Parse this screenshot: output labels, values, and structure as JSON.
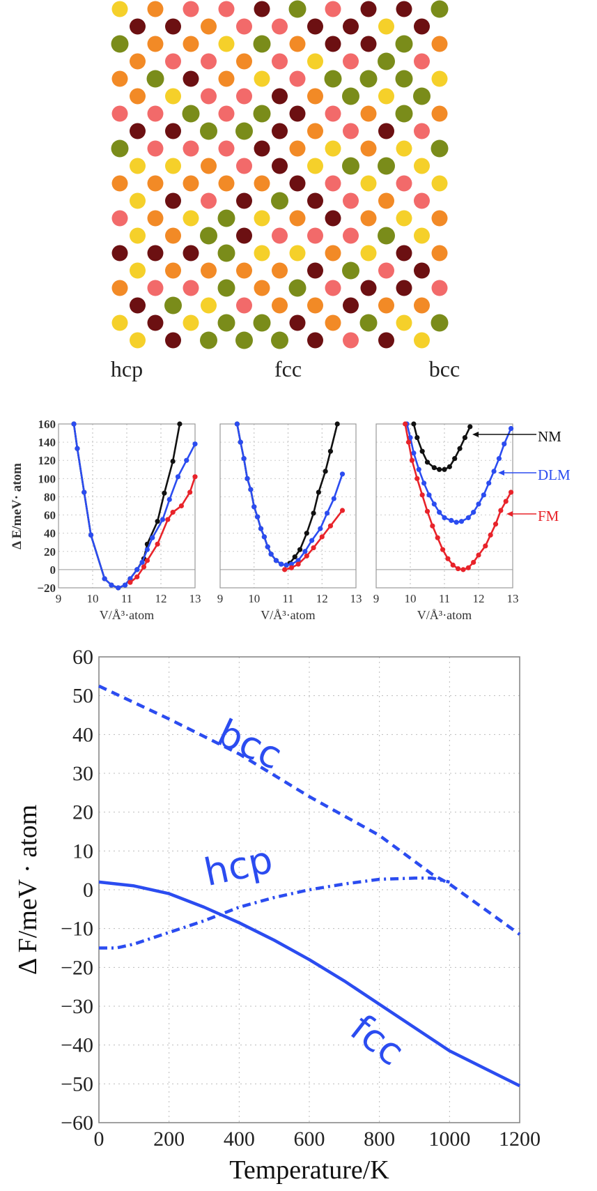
{
  "lattice": {
    "palette": [
      "#f5d02a",
      "#f26a6a",
      "#7a8c1a",
      "#6c1012",
      "#f28a26"
    ]
  },
  "chart_data": [
    {
      "type": "line",
      "title": "hcp",
      "xlabel": "V/Å³·atom",
      "ylabel": "Δ E/meV· atom",
      "xlim": [
        9,
        13
      ],
      "ylim": [
        -20,
        160
      ],
      "xticks": [
        "9",
        "10",
        "11",
        "12",
        "13"
      ],
      "yticks": [
        "−20",
        "0",
        "20",
        "40",
        "60",
        "80",
        "100",
        "120",
        "140",
        "160"
      ],
      "grid": true,
      "series": [
        {
          "name": "NM",
          "color": "#111111",
          "x": [
            9.45,
            9.55,
            9.75,
            9.95,
            10.35,
            10.55,
            10.75,
            10.95,
            11.1,
            11.3,
            11.5,
            11.6,
            11.9,
            12.1,
            12.35,
            12.55
          ],
          "y": [
            160,
            133,
            85,
            38,
            -10,
            -17,
            -20,
            -17,
            -10,
            0,
            12,
            28,
            53,
            84,
            119,
            160
          ]
        },
        {
          "name": "DLM",
          "color": "#2b4cf0",
          "x": [
            9.45,
            9.55,
            9.75,
            9.95,
            10.35,
            10.55,
            10.75,
            10.95,
            11.1,
            11.3,
            11.45,
            11.6,
            11.75,
            12.05,
            12.25,
            12.5,
            12.75,
            13.0
          ],
          "y": [
            160,
            133,
            85,
            38,
            -10,
            -17,
            -20,
            -17,
            -10,
            0,
            8,
            22,
            35,
            55,
            77,
            102,
            120,
            138
          ]
        },
        {
          "name": "FM",
          "color": "#e8232a",
          "x": [
            11.1,
            11.3,
            11.5,
            11.6,
            11.9,
            12.2,
            12.35,
            12.6,
            12.85,
            13.0
          ],
          "y": [
            -14,
            -8,
            3,
            10,
            28,
            55,
            63,
            70,
            85,
            102
          ]
        }
      ]
    },
    {
      "type": "line",
      "title": "fcc",
      "xlabel": "V/Å³·atom",
      "xlim": [
        9,
        13
      ],
      "ylim": [
        -20,
        160
      ],
      "xticks": [
        "9",
        "10",
        "11",
        "12",
        "13"
      ],
      "grid": true,
      "series": [
        {
          "name": "NM",
          "color": "#111111",
          "x": [
            9.5,
            9.6,
            9.7,
            9.8,
            9.9,
            10.0,
            10.1,
            10.2,
            10.3,
            10.4,
            10.5,
            10.65,
            10.8,
            10.95,
            11.05,
            11.2,
            11.35,
            11.55,
            11.75,
            11.9,
            12.1,
            12.25,
            12.45
          ],
          "y": [
            160,
            140,
            122,
            100,
            88,
            69,
            58,
            45,
            36,
            25,
            17,
            10,
            6,
            5,
            7,
            14,
            22,
            40,
            62,
            85,
            108,
            130,
            160
          ]
        },
        {
          "name": "DLM",
          "color": "#2b4cf0",
          "x": [
            9.5,
            9.6,
            9.7,
            9.8,
            9.9,
            10.0,
            10.1,
            10.2,
            10.3,
            10.4,
            10.5,
            10.65,
            10.8,
            10.95,
            11.1,
            11.3,
            11.5,
            11.7,
            11.95,
            12.15,
            12.35,
            12.6
          ],
          "y": [
            160,
            140,
            122,
            100,
            88,
            69,
            58,
            45,
            36,
            25,
            17,
            10,
            6,
            5,
            6,
            10,
            20,
            32,
            45,
            62,
            78,
            105
          ]
        },
        {
          "name": "FM",
          "color": "#e8232a",
          "x": [
            10.9,
            11.1,
            11.3,
            11.55,
            11.75,
            12.0,
            12.25,
            12.6
          ],
          "y": [
            0,
            2,
            6,
            15,
            24,
            36,
            48,
            65
          ]
        }
      ]
    },
    {
      "type": "line",
      "title": "bcc",
      "xlabel": "V/Å³·atom",
      "xlim": [
        9,
        13
      ],
      "ylim": [
        -20,
        160
      ],
      "xticks": [
        "9",
        "10",
        "11",
        "12",
        "13"
      ],
      "grid": true,
      "legend": "right",
      "series": [
        {
          "name": "NM",
          "color": "#111111",
          "x": [
            10.1,
            10.2,
            10.35,
            10.5,
            10.7,
            10.85,
            11.0,
            11.15,
            11.3,
            11.45,
            11.6,
            11.75
          ],
          "y": [
            160,
            145,
            130,
            118,
            112,
            110,
            110,
            113,
            122,
            133,
            145,
            157
          ]
        },
        {
          "name": "DLM",
          "color": "#2b4cf0",
          "x": [
            9.9,
            10.0,
            10.1,
            10.25,
            10.4,
            10.55,
            10.7,
            10.85,
            11.0,
            11.2,
            11.35,
            11.5,
            11.7,
            11.85,
            12.0,
            12.15,
            12.3,
            12.45,
            12.6,
            12.75,
            12.95
          ],
          "y": [
            160,
            145,
            128,
            110,
            95,
            82,
            72,
            63,
            57,
            54,
            52,
            53,
            57,
            63,
            72,
            82,
            95,
            108,
            122,
            138,
            155
          ]
        },
        {
          "name": "FM",
          "color": "#e8232a",
          "x": [
            9.85,
            9.95,
            10.05,
            10.2,
            10.35,
            10.5,
            10.65,
            10.8,
            10.95,
            11.1,
            11.25,
            11.4,
            11.55,
            11.7,
            11.85,
            12.0,
            12.2,
            12.35,
            12.5,
            12.65,
            12.8,
            12.95
          ],
          "y": [
            160,
            140,
            120,
            100,
            82,
            64,
            48,
            35,
            22,
            12,
            5,
            1,
            0,
            2,
            8,
            16,
            26,
            38,
            50,
            65,
            75,
            85
          ]
        }
      ]
    },
    {
      "type": "line",
      "xlabel": "Temperature/K",
      "ylabel": "Δ F/meV · atom",
      "xlim": [
        0,
        1200
      ],
      "ylim": [
        -60,
        60
      ],
      "xticks": [
        "0",
        "200",
        "400",
        "600",
        "800",
        "1000",
        "1200"
      ],
      "yticks": [
        "−60",
        "−50",
        "−40",
        "−30",
        "−20",
        "−10",
        "0",
        "10",
        "20",
        "30",
        "40",
        "50",
        "60"
      ],
      "grid": true,
      "series": [
        {
          "name": "bcc",
          "style": "dashed",
          "color": "#2b4cf0",
          "x": [
            0,
            200,
            400,
            600,
            800,
            950,
            1000,
            1100,
            1200
          ],
          "y": [
            52.5,
            44,
            35,
            24,
            14,
            4,
            1.5,
            -5,
            -11.5
          ]
        },
        {
          "name": "hcp",
          "style": "dash-dot",
          "color": "#2b4cf0",
          "x": [
            0,
            50,
            100,
            200,
            300,
            400,
            500,
            600,
            700,
            800,
            900,
            950,
            1000
          ],
          "y": [
            -15,
            -15,
            -14,
            -11,
            -8,
            -4.5,
            -2,
            0,
            1.5,
            2.7,
            3,
            3,
            2
          ]
        },
        {
          "name": "fcc",
          "style": "solid",
          "color": "#2b4cf0",
          "x": [
            0,
            100,
            200,
            300,
            400,
            500,
            600,
            700,
            800,
            900,
            1000,
            1100,
            1200
          ],
          "y": [
            2,
            1,
            -1,
            -4.5,
            -8.5,
            -13,
            -18,
            -23.5,
            -29.5,
            -35.5,
            -41.5,
            -46,
            -50.5
          ]
        }
      ]
    }
  ]
}
